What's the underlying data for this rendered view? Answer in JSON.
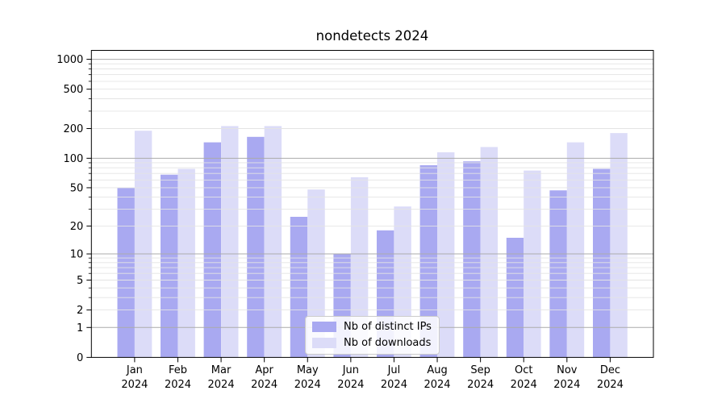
{
  "chart_data": {
    "type": "bar",
    "title": "nondetects 2024",
    "x_axis": {
      "categories": [
        "Jan 2024",
        "Feb 2024",
        "Mar 2024",
        "Apr 2024",
        "May 2024",
        "Jun 2024",
        "Jul 2024",
        "Aug 2024",
        "Sep 2024",
        "Oct 2024",
        "Nov 2024",
        "Dec 2024"
      ]
    },
    "y_axis": {
      "scale": "log1p",
      "ticks": [
        0,
        1,
        2,
        5,
        10,
        20,
        50,
        100,
        200,
        500,
        1000
      ],
      "range": [
        0,
        1230
      ]
    },
    "series": [
      {
        "name": "Nb of distinct IPs",
        "color": "#a9a9f1",
        "values": [
          50,
          68,
          145,
          165,
          25,
          10,
          18,
          85,
          93,
          15,
          47,
          78
        ]
      },
      {
        "name": "Nb of downloads",
        "color": "#dcdcf8",
        "values": [
          190,
          78,
          212,
          212,
          48,
          64,
          32,
          115,
          130,
          75,
          145,
          180
        ]
      }
    ],
    "legend_position": "lower center",
    "grid": {
      "shown": true,
      "major_color": "#ababab",
      "minor_color": "#e4e4e4"
    },
    "axis_color": "#000000",
    "tick_label_color": "#000000"
  }
}
